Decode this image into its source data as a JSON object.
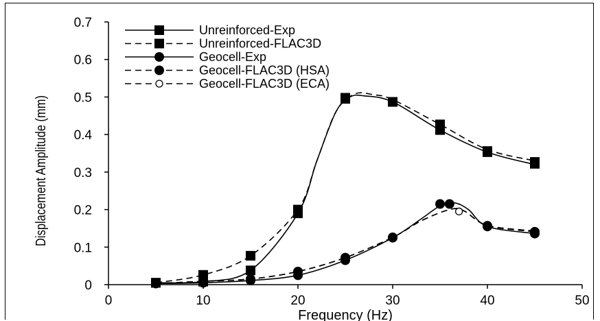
{
  "chart_data": {
    "type": "line",
    "title": "",
    "xlabel": "Frequency (Hz)",
    "ylabel": "Displacement Amplitude (mm)",
    "xlim": [
      0,
      50
    ],
    "ylim": [
      0,
      0.7
    ],
    "x_ticks": [
      "0",
      "10",
      "20",
      "30",
      "40",
      "50"
    ],
    "y_ticks": [
      "0",
      "0.1",
      "0.2",
      "0.3",
      "0.4",
      "0.5",
      "0.6",
      "0.7"
    ],
    "x_tick_values": [
      0,
      10,
      20,
      30,
      40,
      50
    ],
    "y_tick_values": [
      0,
      0.1,
      0.2,
      0.3,
      0.4,
      0.5,
      0.6,
      0.7
    ],
    "grid": false,
    "legend_position": "top-left",
    "series": [
      {
        "name": "Unreinforced-Exp",
        "line": "solid",
        "marker": "square-filled",
        "color": "#000000",
        "points": [
          [
            5,
            0.005
          ],
          [
            10,
            0.008
          ],
          [
            15,
            0.038
          ],
          [
            20,
            0.19
          ],
          [
            25,
            0.498
          ],
          [
            30,
            0.487
          ],
          [
            35,
            0.412
          ],
          [
            40,
            0.353
          ],
          [
            45,
            0.322
          ]
        ],
        "curve": [
          [
            5,
            0.005
          ],
          [
            10,
            0.008
          ],
          [
            15,
            0.038
          ],
          [
            20,
            0.19
          ],
          [
            22,
            0.33
          ],
          [
            24,
            0.46
          ],
          [
            25.5,
            0.5
          ],
          [
            27,
            0.503
          ],
          [
            30,
            0.487
          ],
          [
            35,
            0.412
          ],
          [
            40,
            0.353
          ],
          [
            45,
            0.32
          ]
        ]
      },
      {
        "name": "Unreinforced-FLAC3D",
        "line": "dashed",
        "marker": "square-filled",
        "color": "#000000",
        "points": [
          [
            5,
            0.005
          ],
          [
            10,
            0.026
          ],
          [
            15,
            0.077
          ],
          [
            20,
            0.2
          ],
          [
            25,
            0.495
          ],
          [
            30,
            0.487
          ],
          [
            35,
            0.427
          ],
          [
            40,
            0.356
          ],
          [
            45,
            0.327
          ]
        ],
        "curve": [
          [
            5,
            0.005
          ],
          [
            10,
            0.026
          ],
          [
            15,
            0.077
          ],
          [
            20,
            0.2
          ],
          [
            22,
            0.33
          ],
          [
            24,
            0.46
          ],
          [
            26,
            0.508
          ],
          [
            28,
            0.506
          ],
          [
            30,
            0.493
          ],
          [
            35,
            0.427
          ],
          [
            40,
            0.36
          ],
          [
            45,
            0.33
          ]
        ]
      },
      {
        "name": "Geocell-Exp",
        "line": "solid",
        "marker": "circle-filled",
        "color": "#000000",
        "points": [
          [
            5,
            0.003
          ],
          [
            10,
            0.005
          ],
          [
            15,
            0.011
          ],
          [
            20,
            0.025
          ],
          [
            25,
            0.065
          ],
          [
            30,
            0.125
          ],
          [
            36,
            0.215
          ],
          [
            40,
            0.155
          ],
          [
            45,
            0.136
          ]
        ],
        "curve": [
          [
            5,
            0.003
          ],
          [
            10,
            0.005
          ],
          [
            15,
            0.011
          ],
          [
            20,
            0.025
          ],
          [
            25,
            0.065
          ],
          [
            30,
            0.125
          ],
          [
            33,
            0.175
          ],
          [
            35,
            0.21
          ],
          [
            36.5,
            0.218
          ],
          [
            38,
            0.2
          ],
          [
            40,
            0.155
          ],
          [
            45,
            0.136
          ]
        ]
      },
      {
        "name": "Geocell-FLAC3D (HSA)",
        "line": "dashed",
        "marker": "circle-filled",
        "color": "#000000",
        "points": [
          [
            5,
            0.003
          ],
          [
            10,
            0.009
          ],
          [
            15,
            0.015
          ],
          [
            20,
            0.035
          ],
          [
            25,
            0.072
          ],
          [
            30,
            0.126
          ],
          [
            35,
            0.215
          ],
          [
            40,
            0.157
          ],
          [
            45,
            0.141
          ]
        ],
        "curve": [
          [
            5,
            0.003
          ],
          [
            10,
            0.009
          ],
          [
            15,
            0.015
          ],
          [
            20,
            0.035
          ],
          [
            25,
            0.072
          ],
          [
            30,
            0.126
          ],
          [
            33,
            0.17
          ],
          [
            36,
            0.2
          ],
          [
            37.5,
            0.197
          ],
          [
            40,
            0.157
          ],
          [
            45,
            0.141
          ]
        ]
      },
      {
        "name": "Geocell-FLAC3D (ECA)",
        "line": "dashed",
        "marker": "circle-open",
        "color": "#000000",
        "points": [
          [
            5,
            0.003
          ],
          [
            10,
            0.009
          ],
          [
            15,
            0.015
          ],
          [
            20,
            0.035
          ],
          [
            25,
            0.072
          ],
          [
            30,
            0.126
          ],
          [
            37,
            0.195
          ],
          [
            40,
            0.158
          ],
          [
            45,
            0.143
          ]
        ],
        "curve": [
          [
            5,
            0.003
          ],
          [
            10,
            0.009
          ],
          [
            15,
            0.015
          ],
          [
            20,
            0.035
          ],
          [
            25,
            0.072
          ],
          [
            30,
            0.126
          ],
          [
            33,
            0.17
          ],
          [
            36,
            0.2
          ],
          [
            37.5,
            0.197
          ],
          [
            40,
            0.158
          ],
          [
            45,
            0.143
          ]
        ]
      }
    ]
  }
}
